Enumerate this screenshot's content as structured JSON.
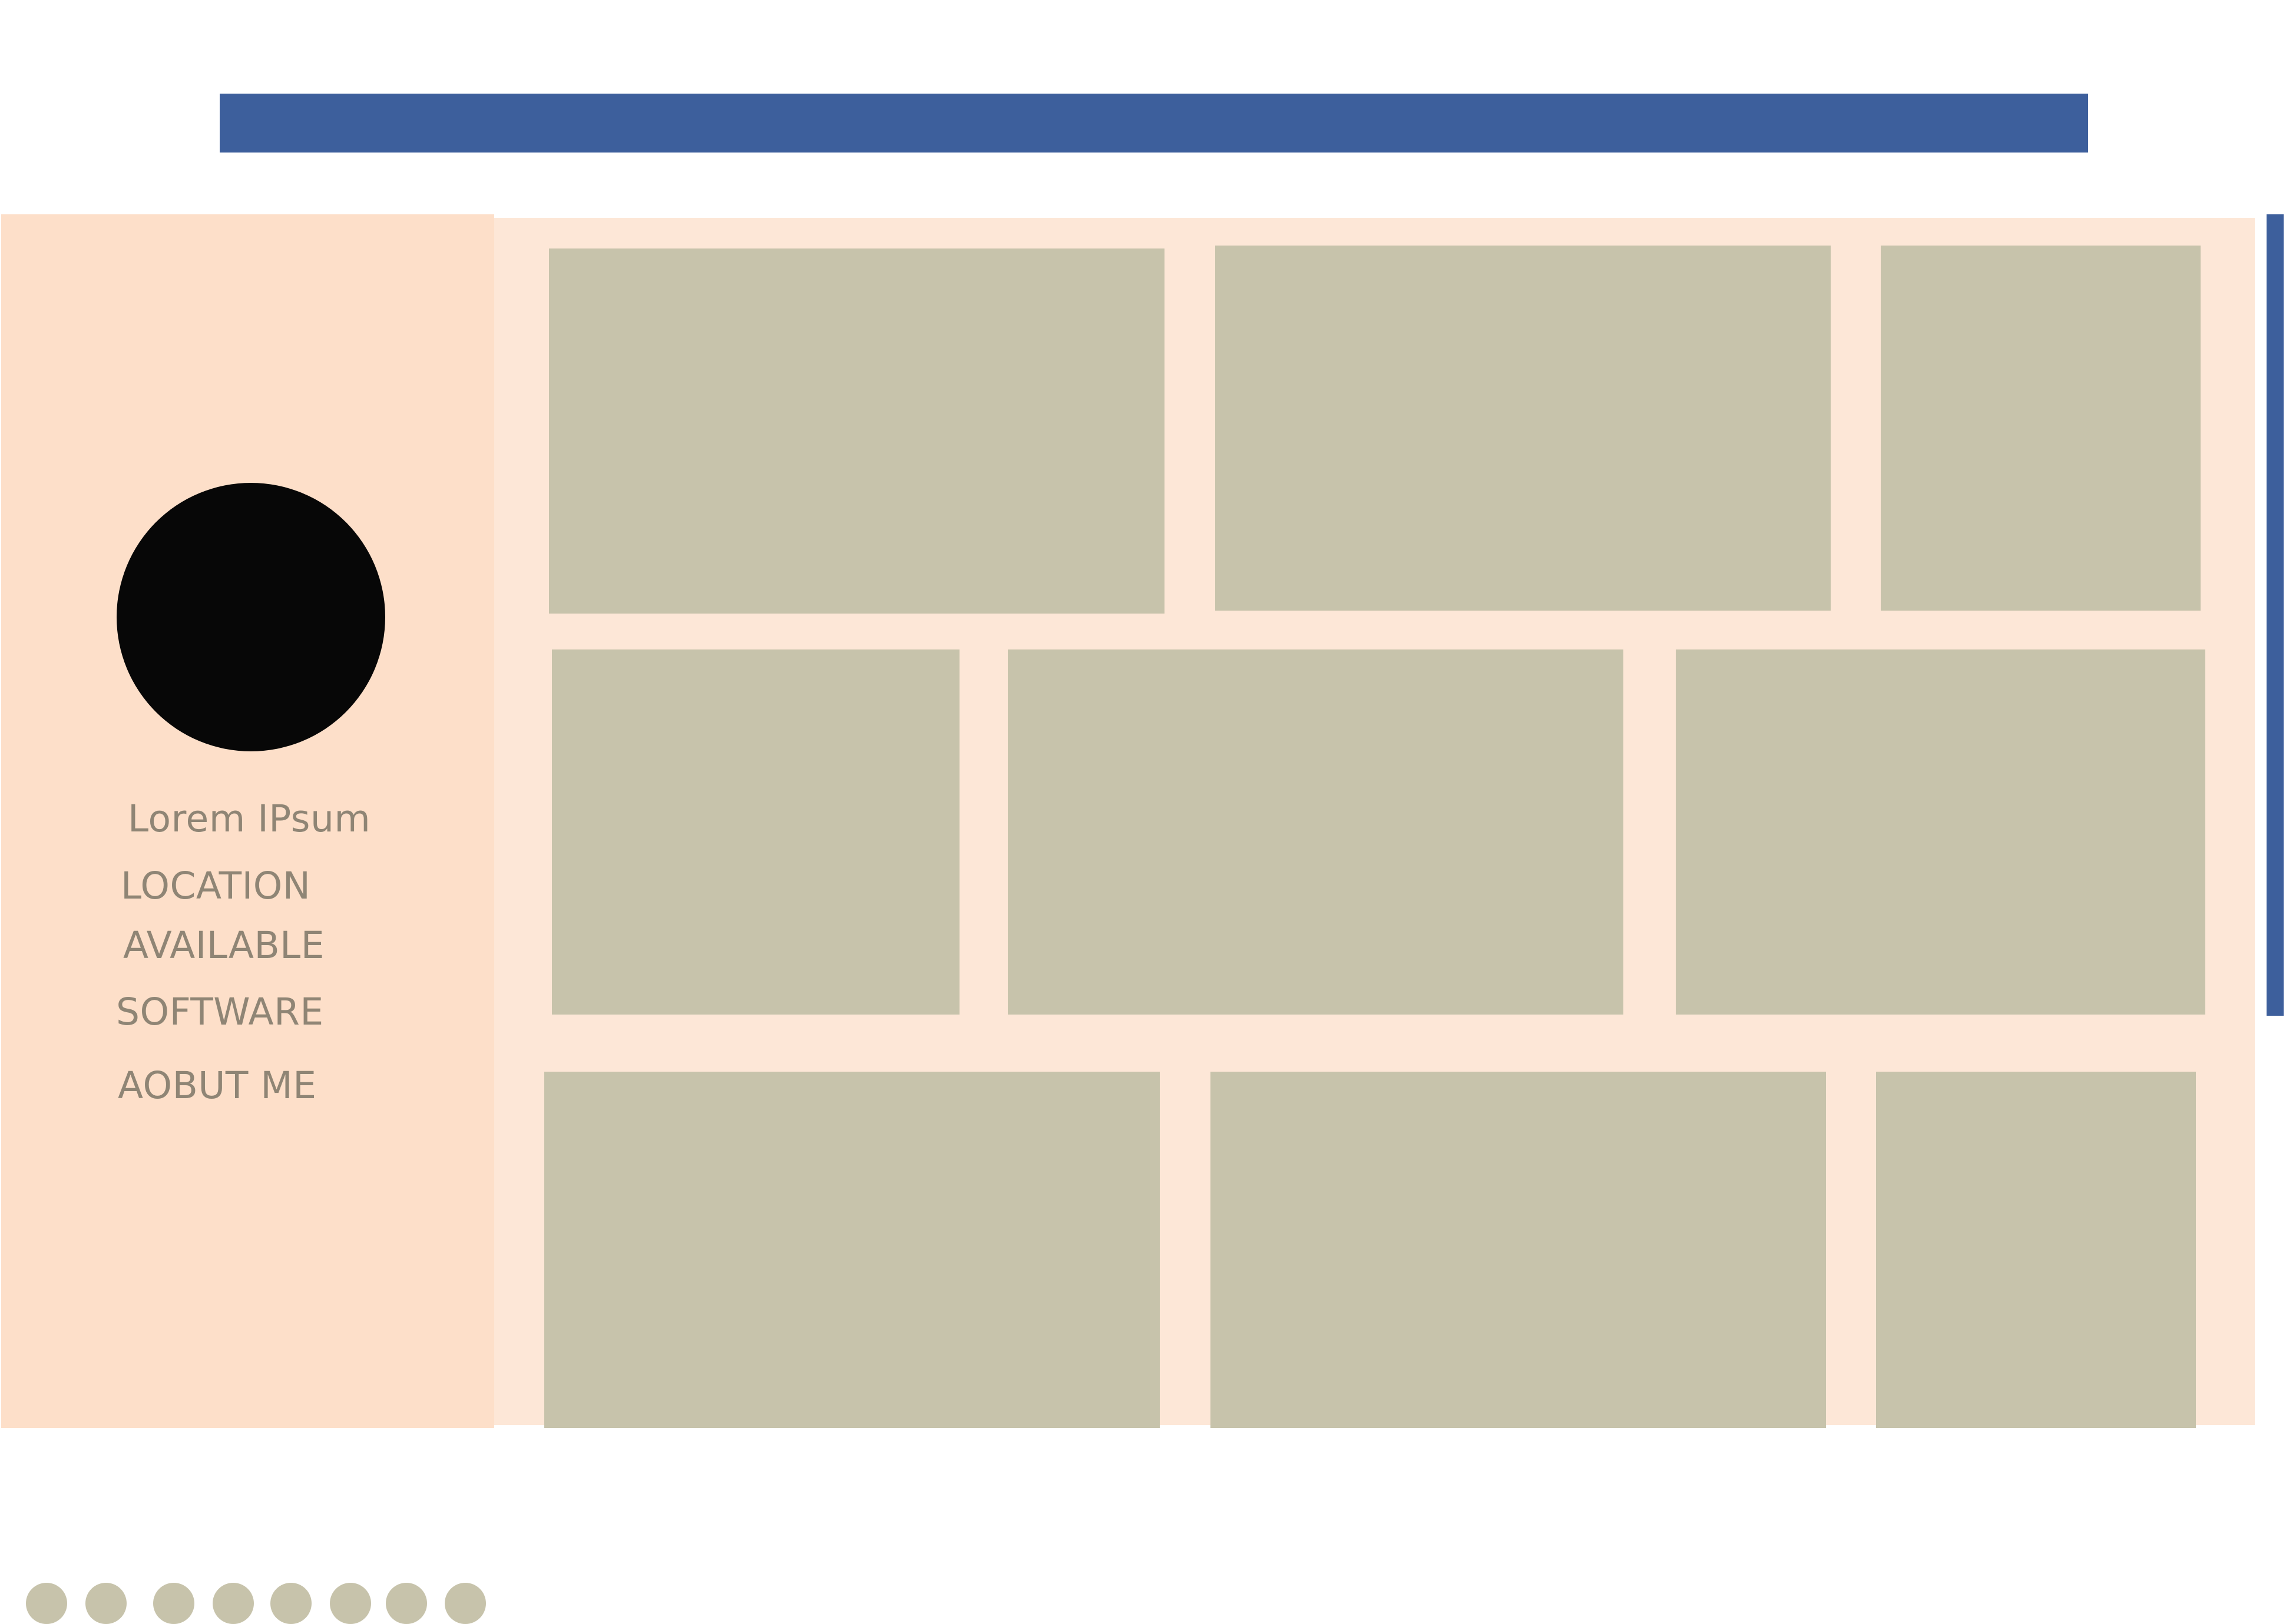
{
  "colors": {
    "header_bar": "#3d5f9c",
    "sidebar_bg": "#fddfc9",
    "content_bg": "#fde7d7",
    "tile": "#c7c3ab",
    "avatar": "#070707",
    "text": "#8f8575"
  },
  "sidebar": {
    "name": "Lorem IPsum",
    "items": [
      {
        "label": "LOCATION"
      },
      {
        "label": "AVAILABLE"
      },
      {
        "label": "SOFTWARE"
      },
      {
        "label": "AOBUT ME"
      }
    ]
  }
}
